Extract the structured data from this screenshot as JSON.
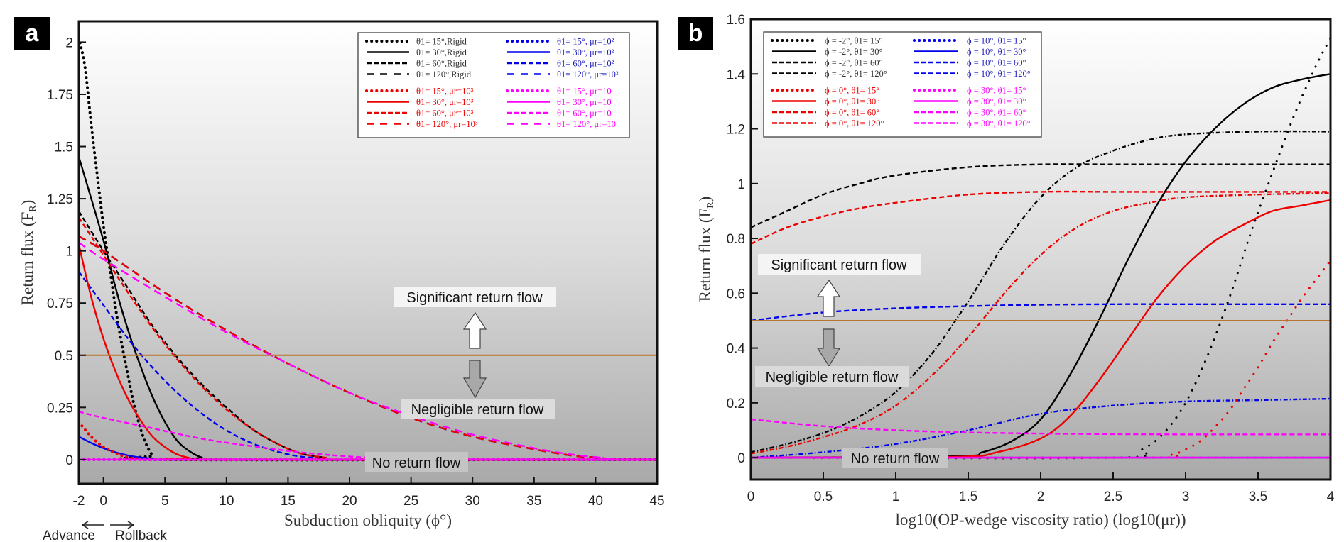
{
  "figure": {
    "panels": [
      "a",
      "b"
    ]
  },
  "annotations": {
    "significant": "Significant return flow",
    "negligible": "Negligible return flow",
    "none": "No return flow",
    "threshold": 0.5,
    "threshold_color": "#b8742a",
    "advance": "Advance",
    "rollback": "Rollback"
  },
  "chart_data": [
    {
      "panel": "a",
      "type": "line",
      "title": "",
      "xlabel": "Subduction obliquity (ϕ°)",
      "ylabel": "Return flux (F",
      "ylabel_sub": "R",
      "xlim": [
        -2,
        45
      ],
      "ylim": [
        -0.116,
        2.1
      ],
      "xticks": [
        -2,
        0,
        5,
        10,
        15,
        20,
        25,
        30,
        35,
        40,
        45
      ],
      "xtick_labels": [
        "-2",
        "0",
        "5",
        "10",
        "15",
        "20",
        "25",
        "30",
        "35",
        "40",
        "45"
      ],
      "yticks": [
        0,
        0.25,
        0.5,
        0.75,
        1,
        1.25,
        1.5,
        1.75,
        2
      ],
      "ytick_labels": [
        "0",
        "0.25",
        "0.5",
        "0.75",
        "1",
        "1.25",
        "1.5",
        "1.75",
        "2"
      ],
      "grid": false,
      "legend_position": "top-right",
      "legend_columns": 2,
      "series": [
        {
          "name": "θ1= 15°,Rigid",
          "color": "#000000",
          "style": "dotted",
          "x": [
            -2,
            -1.5,
            -1,
            -0.5,
            0,
            0.5,
            1,
            1.5,
            2,
            2.5,
            3,
            3.5,
            4,
            4.5,
            45
          ],
          "y": [
            2.02,
            1.88,
            1.61,
            1.36,
            1.12,
            0.92,
            0.72,
            0.55,
            0.4,
            0.26,
            0.15,
            0.07,
            0.02,
            0,
            0
          ]
        },
        {
          "name": "θ1= 30°,Rigid",
          "color": "#000000",
          "style": "solid",
          "x": [
            -2,
            0,
            1,
            2,
            3,
            4,
            5,
            6,
            7,
            8,
            9,
            45
          ],
          "y": [
            1.45,
            1.05,
            0.82,
            0.62,
            0.45,
            0.3,
            0.18,
            0.09,
            0.04,
            0.01,
            0,
            0
          ]
        },
        {
          "name": "θ1= 60°,Rigid",
          "color": "#000000",
          "style": "dashed",
          "x": [
            -2,
            0,
            2,
            4,
            6,
            8,
            10,
            12,
            14,
            16,
            18,
            20,
            45
          ],
          "y": [
            1.19,
            1.0,
            0.82,
            0.64,
            0.49,
            0.36,
            0.25,
            0.15,
            0.08,
            0.03,
            0.01,
            0,
            0
          ]
        },
        {
          "name": "θ1= 120°,Rigid",
          "color": "#000000",
          "style": "longdash",
          "x": [
            -2,
            0,
            5,
            10,
            15,
            20,
            25,
            30,
            35,
            38,
            40,
            42,
            45
          ],
          "y": [
            1.07,
            1.0,
            0.8,
            0.62,
            0.46,
            0.32,
            0.2,
            0.11,
            0.05,
            0.02,
            0.01,
            0,
            0
          ]
        },
        {
          "name": "θ1= 15°, μr=10²",
          "color": "#0000ee",
          "style": "dotted",
          "x": [
            -2,
            45
          ],
          "y": [
            0,
            0
          ]
        },
        {
          "name": "θ1= 30°, μr=10²",
          "color": "#0000ee",
          "style": "solid",
          "x": [
            -2,
            -1,
            0,
            1,
            2,
            3,
            4,
            5,
            45
          ],
          "y": [
            0.11,
            0.08,
            0.055,
            0.035,
            0.02,
            0.01,
            0.005,
            0,
            0
          ]
        },
        {
          "name": "θ1= 60°, μr=10²",
          "color": "#0000ee",
          "style": "dashed",
          "x": [
            -2,
            0,
            2,
            4,
            6,
            8,
            10,
            12,
            14,
            16,
            18,
            20,
            45
          ],
          "y": [
            0.9,
            0.74,
            0.58,
            0.44,
            0.32,
            0.22,
            0.14,
            0.08,
            0.04,
            0.015,
            0.005,
            0,
            0
          ]
        },
        {
          "name": "θ1= 120°, μr=10²",
          "color": "#0000ee",
          "style": "longdash",
          "x": [
            -2,
            0,
            5,
            10,
            15,
            20,
            25,
            30,
            35,
            38,
            40,
            42,
            45
          ],
          "y": [
            1.07,
            1.0,
            0.8,
            0.62,
            0.46,
            0.32,
            0.2,
            0.11,
            0.05,
            0.02,
            0.01,
            0,
            0
          ]
        },
        {
          "name": "θ1= 15°, μr=10³",
          "color": "#ee0000",
          "style": "dotted",
          "x": [
            -2,
            -1,
            0,
            1,
            2,
            3,
            4,
            45
          ],
          "y": [
            0.18,
            0.11,
            0.06,
            0.03,
            0.01,
            0.003,
            0,
            0
          ]
        },
        {
          "name": "θ1= 30°, μr=10³",
          "color": "#ee0000",
          "style": "solid",
          "x": [
            -2,
            -1,
            0,
            1,
            2,
            3,
            4,
            5,
            6,
            7,
            8,
            45
          ],
          "y": [
            1.03,
            0.78,
            0.58,
            0.42,
            0.29,
            0.19,
            0.11,
            0.06,
            0.025,
            0.008,
            0,
            0
          ]
        },
        {
          "name": "θ1= 60°, μr=10³",
          "color": "#ee0000",
          "style": "dashed",
          "x": [
            -2,
            0,
            2,
            4,
            6,
            8,
            10,
            12,
            14,
            16,
            18,
            20,
            45
          ],
          "y": [
            1.16,
            0.98,
            0.8,
            0.63,
            0.48,
            0.35,
            0.24,
            0.15,
            0.08,
            0.03,
            0.01,
            0,
            0
          ]
        },
        {
          "name": "θ1= 120°, μr=10³",
          "color": "#ee0000",
          "style": "longdash",
          "x": [
            -2,
            0,
            5,
            10,
            15,
            20,
            25,
            30,
            35,
            38,
            40,
            42,
            45
          ],
          "y": [
            1.07,
            1.0,
            0.8,
            0.62,
            0.46,
            0.32,
            0.2,
            0.11,
            0.05,
            0.02,
            0.01,
            0,
            0
          ]
        },
        {
          "name": "θ1= 15°, μr=10",
          "color": "#ff00ff",
          "style": "dotted",
          "x": [
            -2,
            45
          ],
          "y": [
            0,
            0
          ]
        },
        {
          "name": "θ1= 30°, μr=10",
          "color": "#ff00ff",
          "style": "solid",
          "x": [
            -2,
            45
          ],
          "y": [
            0,
            0
          ]
        },
        {
          "name": "θ1= 60°, μr=10",
          "color": "#ff00ff",
          "style": "dashed",
          "x": [
            -2,
            0,
            4,
            8,
            12,
            16,
            20,
            24,
            28,
            45
          ],
          "y": [
            0.23,
            0.2,
            0.15,
            0.1,
            0.065,
            0.035,
            0.015,
            0.003,
            0,
            0
          ]
        },
        {
          "name": "θ1= 120°, μr=10",
          "color": "#ff00ff",
          "style": "longdash",
          "x": [
            -2,
            0,
            5,
            10,
            15,
            20,
            25,
            30,
            35,
            38,
            40,
            42,
            45
          ],
          "y": [
            1.04,
            0.96,
            0.78,
            0.61,
            0.46,
            0.32,
            0.21,
            0.12,
            0.055,
            0.025,
            0.012,
            0,
            0
          ]
        }
      ]
    },
    {
      "panel": "b",
      "type": "line",
      "title": "",
      "xlabel": "log10(OP-wedge viscosity ratio) (log10(μr))",
      "ylabel": "Return flux (F",
      "ylabel_sub": "R",
      "xlim": [
        0,
        4
      ],
      "ylim": [
        -0.08,
        1.6
      ],
      "xticks": [
        0,
        0.5,
        1,
        1.5,
        2,
        2.5,
        3,
        3.5,
        4
      ],
      "xtick_labels": [
        "0",
        "0.5",
        "1",
        "1.5",
        "2",
        "2.5",
        "3",
        "3.5",
        "4"
      ],
      "yticks": [
        0,
        0.2,
        0.4,
        0.6,
        0.8,
        1,
        1.2,
        1.4,
        1.6
      ],
      "ytick_labels": [
        "0",
        "0.2",
        "0.4",
        "0.6",
        "0.8",
        "1",
        "1.2",
        "1.4",
        "1.6"
      ],
      "grid": false,
      "legend_position": "top-left",
      "legend_columns": 2,
      "series": [
        {
          "name": "ϕ = -2°, θ1= 15°",
          "color": "#000000",
          "style": "dotted",
          "x": [
            0,
            2.5,
            2.7,
            2.85,
            3.0,
            3.15,
            3.3,
            3.45,
            3.6,
            3.75,
            3.9,
            4.0
          ],
          "y": [
            0,
            0,
            0.03,
            0.09,
            0.2,
            0.37,
            0.58,
            0.82,
            1.04,
            1.25,
            1.43,
            1.53
          ]
        },
        {
          "name": "ϕ = -2°, θ1= 30°",
          "color": "#000000",
          "style": "solid",
          "x": [
            0,
            1.4,
            1.6,
            1.8,
            2.0,
            2.2,
            2.4,
            2.6,
            2.8,
            3.0,
            3.2,
            3.4,
            3.6,
            3.8,
            4.0
          ],
          "y": [
            0,
            0.005,
            0.02,
            0.06,
            0.14,
            0.3,
            0.5,
            0.72,
            0.92,
            1.08,
            1.2,
            1.29,
            1.35,
            1.38,
            1.4
          ]
        },
        {
          "name": "ϕ = -2°, θ1= 60°",
          "color": "#000000",
          "style": "dashdot",
          "x": [
            0,
            0.25,
            0.5,
            0.75,
            1.0,
            1.25,
            1.5,
            1.75,
            2.0,
            2.25,
            2.5,
            2.75,
            3.0,
            3.5,
            4.0
          ],
          "y": [
            0.02,
            0.05,
            0.09,
            0.15,
            0.24,
            0.38,
            0.57,
            0.78,
            0.95,
            1.06,
            1.12,
            1.16,
            1.18,
            1.19,
            1.19
          ]
        },
        {
          "name": "ϕ = -2°, θ1= 120°",
          "color": "#000000",
          "style": "dashed",
          "x": [
            0,
            0.25,
            0.5,
            0.75,
            1.0,
            1.5,
            2.0,
            2.5,
            3.0,
            4.0
          ],
          "y": [
            0.84,
            0.9,
            0.96,
            1.0,
            1.03,
            1.06,
            1.07,
            1.07,
            1.07,
            1.07
          ]
        },
        {
          "name": "ϕ = 10°, θ1= 15°",
          "color": "#0000ee",
          "style": "dotted",
          "x": [
            0,
            4
          ],
          "y": [
            0,
            0
          ]
        },
        {
          "name": "ϕ = 10°, θ1= 30°",
          "color": "#0000ee",
          "style": "solid",
          "x": [
            0,
            4
          ],
          "y": [
            0,
            0
          ]
        },
        {
          "name": "ϕ = 10°, θ1= 60°",
          "color": "#0000ee",
          "style": "dashdot",
          "x": [
            0,
            0.5,
            1.0,
            1.5,
            2.0,
            2.5,
            3.0,
            3.5,
            4.0
          ],
          "y": [
            0,
            0.02,
            0.05,
            0.1,
            0.16,
            0.19,
            0.205,
            0.21,
            0.215
          ]
        },
        {
          "name": "ϕ = 10°, θ1= 120°",
          "color": "#0000ee",
          "style": "dashed",
          "x": [
            0,
            0.5,
            1.0,
            1.5,
            2.0,
            2.5,
            3.0,
            4.0
          ],
          "y": [
            0.5,
            0.53,
            0.545,
            0.553,
            0.558,
            0.56,
            0.56,
            0.56
          ]
        },
        {
          "name": "ϕ = 0°, θ1= 15°",
          "color": "#ee0000",
          "style": "dotted",
          "x": [
            0,
            2.7,
            2.9,
            3.0,
            3.1,
            3.2,
            3.3,
            3.4,
            3.5,
            3.6,
            3.7,
            3.8,
            3.9,
            4.0
          ],
          "y": [
            0,
            0,
            0.01,
            0.03,
            0.06,
            0.11,
            0.17,
            0.25,
            0.33,
            0.42,
            0.5,
            0.58,
            0.65,
            0.72
          ]
        },
        {
          "name": "ϕ = 0°, θ1= 30°",
          "color": "#ee0000",
          "style": "solid",
          "x": [
            0,
            1.4,
            1.7,
            2.0,
            2.2,
            2.4,
            2.6,
            2.8,
            3.0,
            3.2,
            3.4,
            3.6,
            3.8,
            4.0
          ],
          "y": [
            0,
            0.003,
            0.02,
            0.07,
            0.15,
            0.28,
            0.43,
            0.58,
            0.7,
            0.79,
            0.85,
            0.9,
            0.92,
            0.94
          ]
        },
        {
          "name": "ϕ = 0°, θ1= 60°",
          "color": "#ee0000",
          "style": "dashdot",
          "x": [
            0,
            0.25,
            0.5,
            0.75,
            1.0,
            1.25,
            1.5,
            1.75,
            2.0,
            2.25,
            2.5,
            2.75,
            3.0,
            3.5,
            4.0
          ],
          "y": [
            0.015,
            0.04,
            0.075,
            0.12,
            0.19,
            0.3,
            0.44,
            0.6,
            0.74,
            0.84,
            0.9,
            0.93,
            0.95,
            0.96,
            0.965
          ]
        },
        {
          "name": "ϕ = 0°, θ1= 120°",
          "color": "#ee0000",
          "style": "dashed",
          "x": [
            0,
            0.25,
            0.5,
            0.75,
            1.0,
            1.5,
            2.0,
            2.5,
            3.0,
            4.0
          ],
          "y": [
            0.78,
            0.84,
            0.88,
            0.91,
            0.93,
            0.96,
            0.97,
            0.97,
            0.97,
            0.97
          ]
        },
        {
          "name": "ϕ = 30°, θ1= 15°",
          "color": "#ff00ff",
          "style": "dotted",
          "x": [
            0,
            4
          ],
          "y": [
            0,
            0
          ]
        },
        {
          "name": "ϕ = 30°, θ1= 30°",
          "color": "#ff00ff",
          "style": "solid",
          "x": [
            0,
            4
          ],
          "y": [
            0,
            0
          ]
        },
        {
          "name": "ϕ = 30°, θ1= 60°",
          "color": "#ff00ff",
          "style": "dashdot",
          "x": [
            0,
            4
          ],
          "y": [
            0,
            0
          ]
        },
        {
          "name": "ϕ = 30°, θ1= 120°",
          "color": "#ff00ff",
          "style": "dashed",
          "x": [
            0,
            0.5,
            1.0,
            1.5,
            2.0,
            2.5,
            3.0,
            4.0
          ],
          "y": [
            0.14,
            0.115,
            0.1,
            0.092,
            0.088,
            0.086,
            0.085,
            0.085
          ]
        }
      ]
    }
  ]
}
